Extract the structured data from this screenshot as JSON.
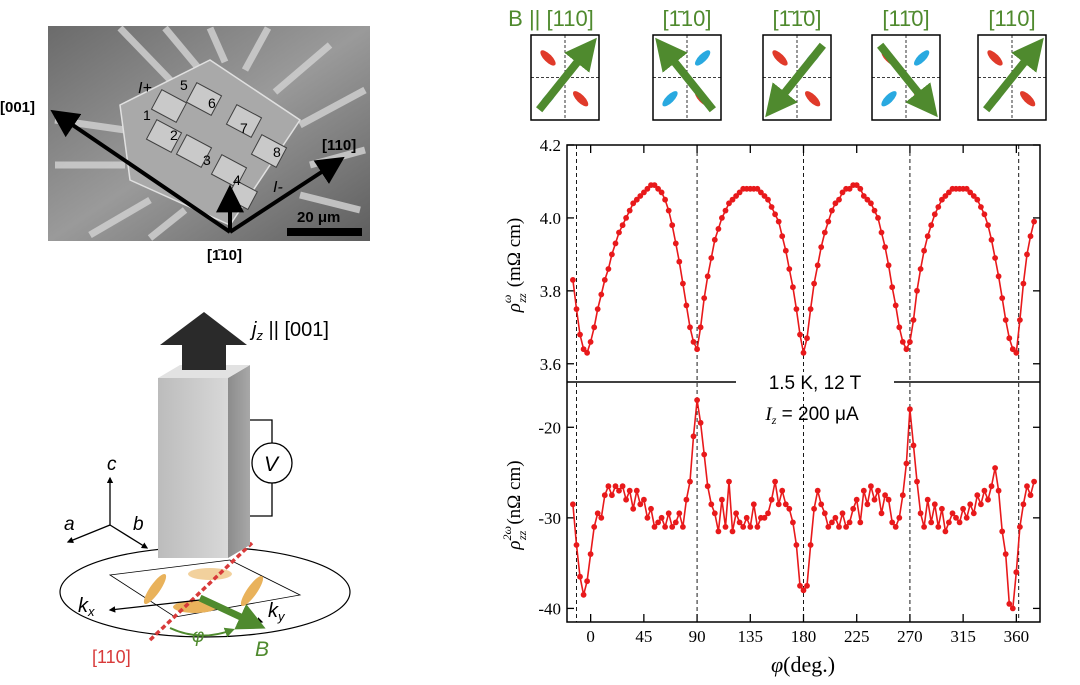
{
  "panel_a": {
    "axis_left": "[001]",
    "axis_right": "[110]",
    "axis_bottom": "[1̄10]",
    "contact_labels": [
      "I+",
      "1",
      "2",
      "3",
      "4",
      "5",
      "6",
      "7",
      "8",
      "I-"
    ],
    "scale_bar": "20 μm"
  },
  "panel_b": {
    "current_label": "j",
    "current_sub": "z",
    "current_dir": " || [001]",
    "voltmeter": "V",
    "axis_a": "a",
    "axis_b": "b",
    "axis_c": "c",
    "kx": "k",
    "kx_sub": "x",
    "ky": "k",
    "ky_sub": "y",
    "phi": "φ",
    "field": "B",
    "red_dir": "[110]"
  },
  "schematics": [
    {
      "label": "B || [110]",
      "arrow": "ne"
    },
    {
      "label": "[1̄10]",
      "arrow": "nw"
    },
    {
      "label": "[1̄1̄0]",
      "arrow": "sw"
    },
    {
      "label": "[11̄0]",
      "arrow": "se"
    },
    {
      "label": "[110]",
      "arrow": "ne"
    }
  ],
  "annotation": {
    "line1": "1.5 K, 12 T",
    "line2_sym": "I",
    "line2_sub": "z",
    "line2_rest": " = 200 μA"
  },
  "chart_data": [
    {
      "type": "line",
      "name": "top",
      "ylabel": "ρ",
      "ylabel_sup": "ω",
      "ylabel_sub": "zz",
      "ylabel_unit": "(mΩ cm)",
      "xlim": [
        -20,
        380
      ],
      "ylim": [
        3.55,
        4.2
      ],
      "yticks": [
        3.6,
        3.8,
        4.0,
        4.2
      ],
      "ytick_labels": [
        "3.6",
        "3.8",
        "4.0",
        "4.2"
      ],
      "x": [
        -15,
        -12,
        -9,
        -6,
        -3,
        0,
        3,
        6,
        9,
        12,
        15,
        18,
        21,
        24,
        27,
        30,
        33,
        36,
        39,
        42,
        45,
        48,
        51,
        54,
        57,
        60,
        63,
        66,
        69,
        72,
        75,
        78,
        81,
        84,
        87,
        90,
        93,
        96,
        99,
        102,
        105,
        108,
        111,
        114,
        117,
        120,
        123,
        126,
        129,
        132,
        135,
        138,
        141,
        144,
        147,
        150,
        153,
        156,
        159,
        162,
        165,
        168,
        171,
        174,
        177,
        180,
        183,
        186,
        189,
        192,
        195,
        198,
        201,
        204,
        207,
        210,
        213,
        216,
        219,
        222,
        225,
        228,
        231,
        234,
        237,
        240,
        243,
        246,
        249,
        252,
        255,
        258,
        261,
        264,
        267,
        270,
        273,
        276,
        279,
        282,
        285,
        288,
        291,
        294,
        297,
        300,
        303,
        306,
        309,
        312,
        315,
        318,
        321,
        324,
        327,
        330,
        333,
        336,
        339,
        342,
        345,
        348,
        351,
        354,
        357,
        360,
        363,
        366,
        369,
        372,
        375
      ],
      "y": [
        3.83,
        3.75,
        3.68,
        3.64,
        3.63,
        3.66,
        3.7,
        3.75,
        3.79,
        3.83,
        3.86,
        3.9,
        3.93,
        3.96,
        3.98,
        4.0,
        4.02,
        4.04,
        4.05,
        4.06,
        4.07,
        4.08,
        4.09,
        4.09,
        4.08,
        4.07,
        4.05,
        4.02,
        3.98,
        3.93,
        3.88,
        3.82,
        3.76,
        3.7,
        3.66,
        3.64,
        3.7,
        3.78,
        3.84,
        3.89,
        3.94,
        3.97,
        4.0,
        4.02,
        4.04,
        4.05,
        4.06,
        4.07,
        4.08,
        4.08,
        4.08,
        4.08,
        4.08,
        4.07,
        4.06,
        4.05,
        4.03,
        4.01,
        3.99,
        3.95,
        3.91,
        3.86,
        3.81,
        3.75,
        3.68,
        3.63,
        3.67,
        3.75,
        3.82,
        3.87,
        3.92,
        3.96,
        3.99,
        4.02,
        4.04,
        4.05,
        4.07,
        4.08,
        4.08,
        4.09,
        4.09,
        4.08,
        4.06,
        4.05,
        4.04,
        4.02,
        4.0,
        3.96,
        3.92,
        3.87,
        3.81,
        3.76,
        3.7,
        3.66,
        3.64,
        3.66,
        3.72,
        3.8,
        3.86,
        3.91,
        3.95,
        3.98,
        4.01,
        4.03,
        4.05,
        4.06,
        4.07,
        4.08,
        4.08,
        4.08,
        4.08,
        4.08,
        4.07,
        4.06,
        4.05,
        4.03,
        4.01,
        3.98,
        3.94,
        3.89,
        3.84,
        3.78,
        3.72,
        3.67,
        3.64,
        3.63,
        3.72,
        3.82,
        3.9,
        3.95,
        3.99
      ]
    },
    {
      "type": "line",
      "name": "bottom",
      "ylabel": "ρ",
      "ylabel_sup": "2ω",
      "ylabel_sub": "zz",
      "ylabel_unit": "(nΩ cm)",
      "xlabel": "φ",
      "xlabel_unit": "(deg.)",
      "xlim": [
        -20,
        380
      ],
      "ylim": [
        -41.5,
        -15
      ],
      "yticks": [
        -40,
        -30,
        -20
      ],
      "ytick_labels": [
        "-40",
        "-30",
        "-20"
      ],
      "xticks": [
        0,
        45,
        90,
        135,
        180,
        225,
        270,
        315,
        360
      ],
      "xtick_labels": [
        "0",
        "45",
        "90",
        "135",
        "180",
        "225",
        "270",
        "315",
        "360"
      ],
      "x": [
        -15,
        -12,
        -9,
        -6,
        -3,
        0,
        3,
        6,
        9,
        12,
        15,
        18,
        21,
        24,
        27,
        30,
        33,
        36,
        39,
        42,
        45,
        48,
        51,
        54,
        57,
        60,
        63,
        66,
        69,
        72,
        75,
        78,
        81,
        84,
        87,
        90,
        93,
        96,
        99,
        102,
        105,
        108,
        111,
        114,
        117,
        120,
        123,
        126,
        129,
        132,
        135,
        138,
        141,
        144,
        147,
        150,
        153,
        156,
        159,
        162,
        165,
        168,
        171,
        174,
        177,
        180,
        183,
        186,
        189,
        192,
        195,
        198,
        201,
        204,
        207,
        210,
        213,
        216,
        219,
        222,
        225,
        228,
        231,
        234,
        237,
        240,
        243,
        246,
        249,
        252,
        255,
        258,
        261,
        264,
        267,
        270,
        273,
        276,
        279,
        282,
        285,
        288,
        291,
        294,
        297,
        300,
        303,
        306,
        309,
        312,
        315,
        318,
        321,
        324,
        327,
        330,
        333,
        336,
        339,
        342,
        345,
        348,
        351,
        354,
        357,
        360,
        363,
        366,
        369,
        372,
        375
      ],
      "y": [
        -28.5,
        -33.0,
        -36.5,
        -38.5,
        -37.0,
        -34.0,
        -31.0,
        -29.5,
        -30.0,
        -27.5,
        -26.5,
        -27.5,
        -26.5,
        -27.0,
        -26.5,
        -28.0,
        -27.0,
        -29.0,
        -27.0,
        -28.5,
        -28.0,
        -30.0,
        -29.0,
        -31.0,
        -30.5,
        -30.0,
        -31.0,
        -29.5,
        -31.0,
        -30.5,
        -29.5,
        -31.0,
        -28.0,
        -26.0,
        -21.0,
        -17.0,
        -19.5,
        -23.0,
        -26.5,
        -28.5,
        -29.5,
        -31.5,
        -28.0,
        -31.0,
        -26.0,
        -31.5,
        -29.5,
        -30.5,
        -31.0,
        -30.0,
        -31.0,
        -28.5,
        -31.0,
        -30.0,
        -30.0,
        -29.5,
        -28.0,
        -26.0,
        -28.5,
        -27.0,
        -28.5,
        -29.0,
        -30.5,
        -33.0,
        -37.5,
        -38.0,
        -37.5,
        -33.0,
        -29.0,
        -27.0,
        -28.5,
        -29.5,
        -31.0,
        -30.5,
        -30.0,
        -31.0,
        -29.5,
        -31.0,
        -30.5,
        -29.0,
        -28.0,
        -30.5,
        -27.0,
        -28.5,
        -26.5,
        -28.0,
        -27.0,
        -29.5,
        -27.5,
        -28.0,
        -30.5,
        -31.0,
        -30.0,
        -27.5,
        -24.0,
        -18.0,
        -22.0,
        -26.0,
        -29.5,
        -31.0,
        -28.0,
        -30.5,
        -28.5,
        -31.0,
        -29.0,
        -31.5,
        -30.5,
        -29.5,
        -30.0,
        -30.5,
        -29.0,
        -30.0,
        -28.5,
        -29.5,
        -27.5,
        -28.5,
        -27.0,
        -28.0,
        -26.5,
        -24.5,
        -27.0,
        -31.5,
        -34.0,
        -39.5,
        -40.0,
        -36.0,
        -31.0,
        -28.5,
        -26.5,
        -27.5,
        -26.0
      ]
    }
  ]
}
